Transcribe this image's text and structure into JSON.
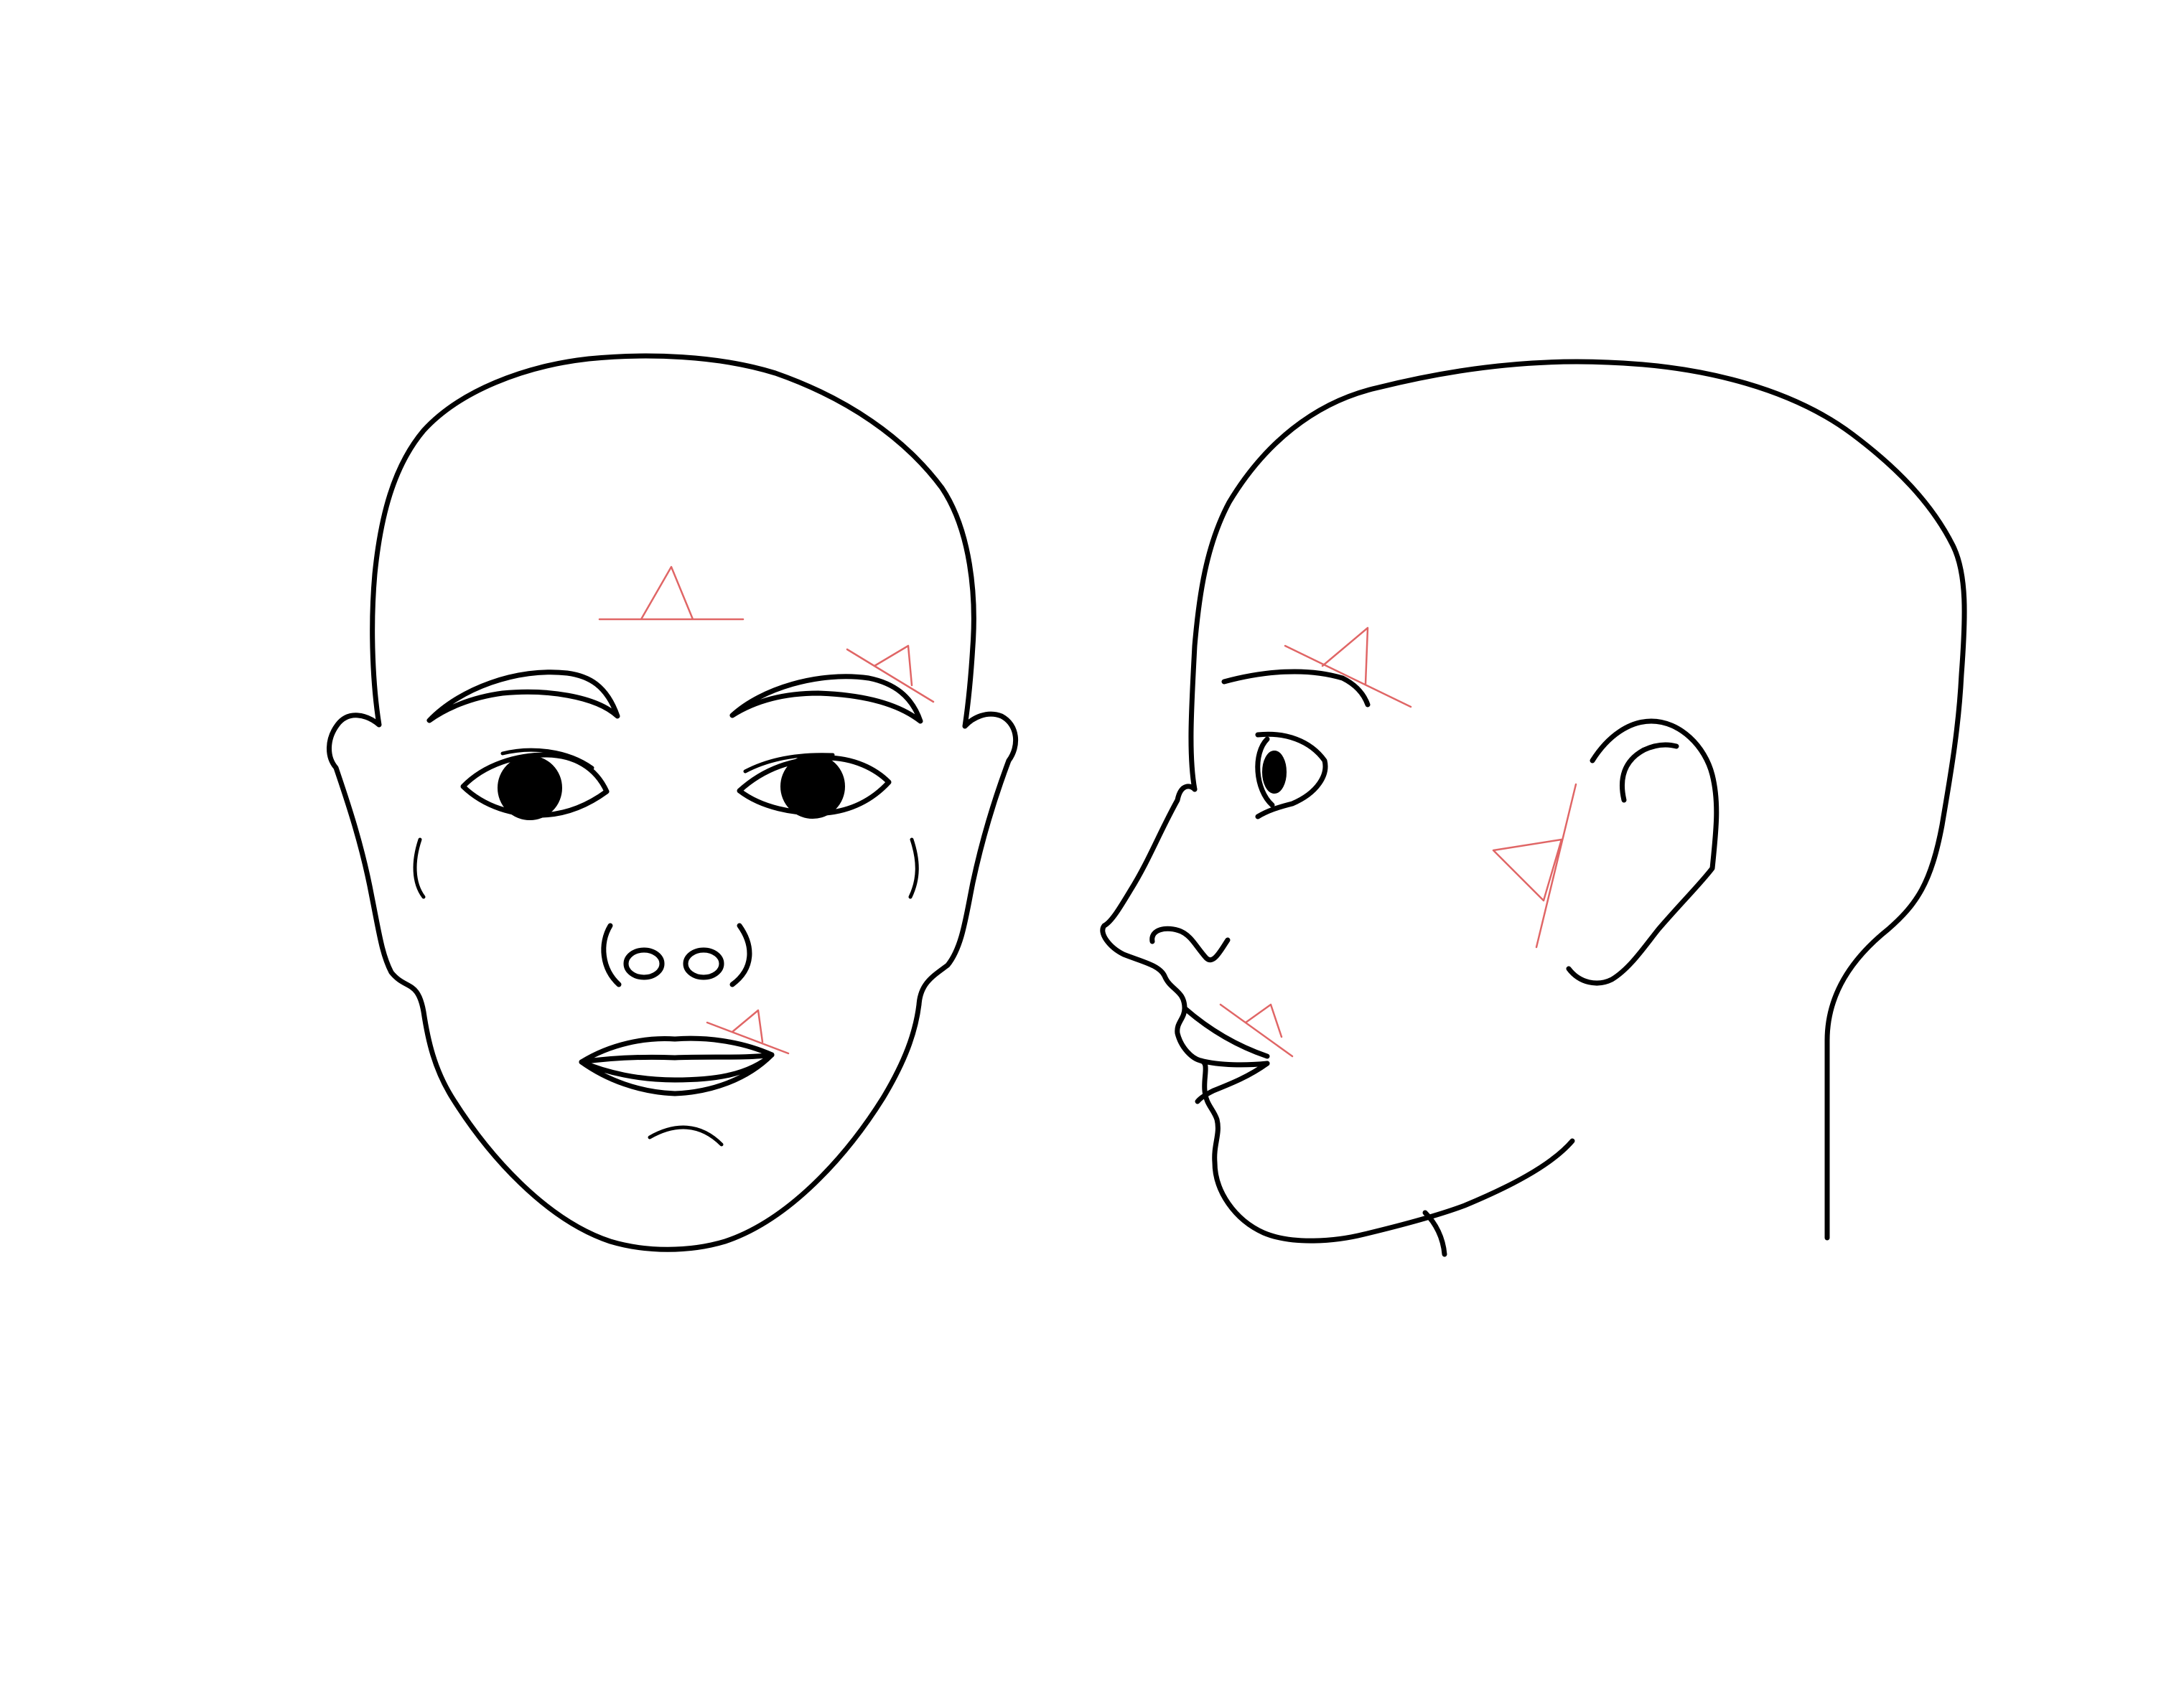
{
  "colors": {
    "background": "#ffffff",
    "outline": "#000000",
    "marker": "#e06666"
  },
  "figures": [
    {
      "view": "front",
      "markers": [
        "forehead-center",
        "right-brow-tail",
        "right-lip-corner"
      ]
    },
    {
      "view": "profile",
      "markers": [
        "temple-brow",
        "cheek-front-of-ear",
        "lip-corner"
      ]
    }
  ],
  "marker_shape": "triangle-on-baseline"
}
